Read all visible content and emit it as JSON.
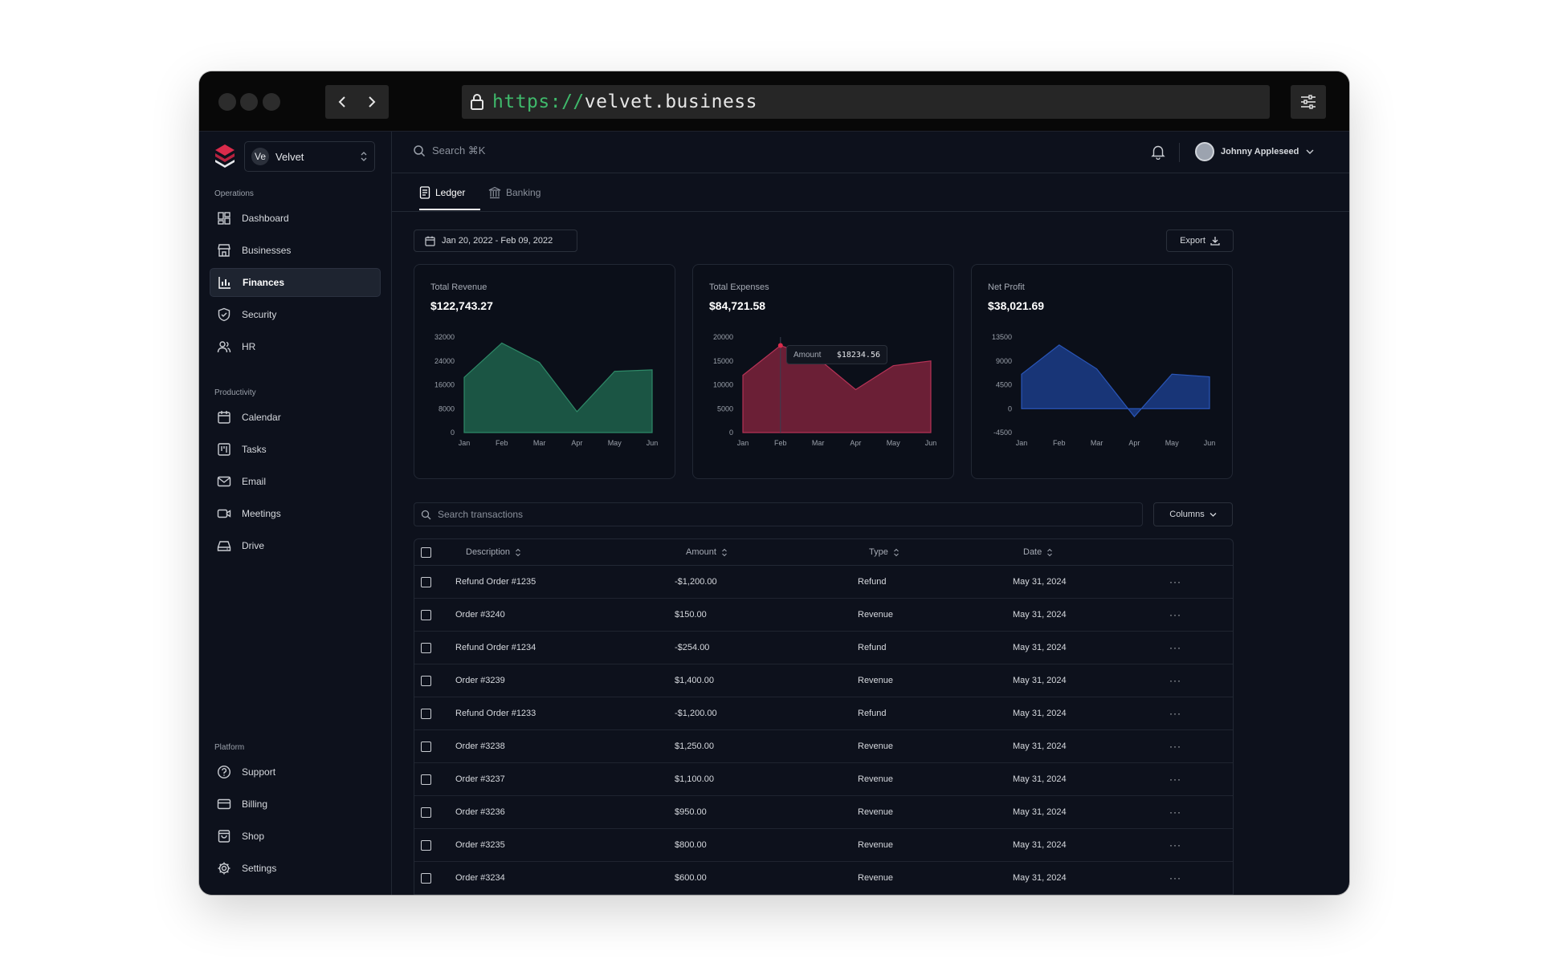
{
  "browser": {
    "url_protocol": "https://",
    "url_host": "velvet.business"
  },
  "workspace": {
    "avatar": "Ve",
    "name": "Velvet"
  },
  "sidebar": {
    "sections": [
      {
        "label": "Operations",
        "items": [
          {
            "label": "Dashboard",
            "icon": "dashboard-icon"
          },
          {
            "label": "Businesses",
            "icon": "store-icon"
          },
          {
            "label": "Finances",
            "icon": "bar-chart-icon",
            "active": true
          },
          {
            "label": "Security",
            "icon": "shield-icon"
          },
          {
            "label": "HR",
            "icon": "users-icon"
          }
        ]
      },
      {
        "label": "Productivity",
        "items": [
          {
            "label": "Calendar",
            "icon": "calendar-icon"
          },
          {
            "label": "Tasks",
            "icon": "kanban-icon"
          },
          {
            "label": "Email",
            "icon": "mail-icon"
          },
          {
            "label": "Meetings",
            "icon": "video-icon"
          },
          {
            "label": "Drive",
            "icon": "hard-drive-icon"
          }
        ]
      },
      {
        "label": "Platform",
        "items": [
          {
            "label": "Support",
            "icon": "help-circle-icon"
          },
          {
            "label": "Billing",
            "icon": "credit-card-icon"
          },
          {
            "label": "Shop",
            "icon": "shopping-bag-icon"
          },
          {
            "label": "Settings",
            "icon": "gear-icon"
          }
        ]
      }
    ]
  },
  "topbar": {
    "search_label": "Search ⌘K",
    "user_name": "Johnny Appleseed"
  },
  "tabs": [
    {
      "label": "Ledger",
      "active": true
    },
    {
      "label": "Banking",
      "active": false
    }
  ],
  "date_range": "Jan 20, 2022 - Feb 09, 2022",
  "export_label": "Export",
  "cards": [
    {
      "title": "Total Revenue",
      "value": "$122,743.27",
      "color": "#1b5544",
      "stroke": "#2e8a68"
    },
    {
      "title": "Total Expenses",
      "value": "$84,721.58",
      "color": "#6b1f36",
      "stroke": "#b53356"
    },
    {
      "title": "Net Profit",
      "value": "$38,021.69",
      "color": "#183577",
      "stroke": "#2a56b8"
    }
  ],
  "tooltip": {
    "label": "Amount",
    "value": "$18234.56"
  },
  "chart_data": [
    {
      "type": "area",
      "categories": [
        "Jan",
        "Feb",
        "Mar",
        "Apr",
        "May",
        "Jun"
      ],
      "values": [
        18500,
        30000,
        23500,
        7000,
        20500,
        21000
      ],
      "yticks": [
        "32000",
        "24000",
        "16000",
        "8000",
        "0"
      ],
      "ylim": [
        0,
        32000
      ]
    },
    {
      "type": "area",
      "categories": [
        "Jan",
        "Feb",
        "Mar",
        "Apr",
        "May",
        "Jun"
      ],
      "values": [
        12000,
        18234.56,
        15500,
        9000,
        14000,
        15000
      ],
      "yticks": [
        "20000",
        "15000",
        "10000",
        "5000",
        "0"
      ],
      "ylim": [
        0,
        20000
      ]
    },
    {
      "type": "area",
      "categories": [
        "Jan",
        "Feb",
        "Mar",
        "Apr",
        "May",
        "Jun"
      ],
      "values": [
        6500,
        12000,
        7500,
        -1500,
        6500,
        6000
      ],
      "yticks": [
        "13500",
        "9000",
        "4500",
        "0",
        "-4500"
      ],
      "ylim": [
        -4500,
        13500
      ]
    }
  ],
  "transactions": {
    "search_placeholder": "Search transactions",
    "columns_label": "Columns",
    "headers": [
      "Description",
      "Amount",
      "Type",
      "Date"
    ],
    "rows": [
      [
        "Refund Order #1235",
        "-$1,200.00",
        "Refund",
        "May 31, 2024"
      ],
      [
        "Order #3240",
        "$150.00",
        "Revenue",
        "May 31, 2024"
      ],
      [
        "Refund Order #1234",
        "-$254.00",
        "Refund",
        "May 31, 2024"
      ],
      [
        "Order #3239",
        "$1,400.00",
        "Revenue",
        "May 31, 2024"
      ],
      [
        "Refund Order #1233",
        "-$1,200.00",
        "Refund",
        "May 31, 2024"
      ],
      [
        "Order #3238",
        "$1,250.00",
        "Revenue",
        "May 31, 2024"
      ],
      [
        "Order #3237",
        "$1,100.00",
        "Revenue",
        "May 31, 2024"
      ],
      [
        "Order #3236",
        "$950.00",
        "Revenue",
        "May 31, 2024"
      ],
      [
        "Order #3235",
        "$800.00",
        "Revenue",
        "May 31, 2024"
      ],
      [
        "Order #3234",
        "$600.00",
        "Revenue",
        "May 31, 2024"
      ]
    ],
    "row_menu": "···"
  }
}
